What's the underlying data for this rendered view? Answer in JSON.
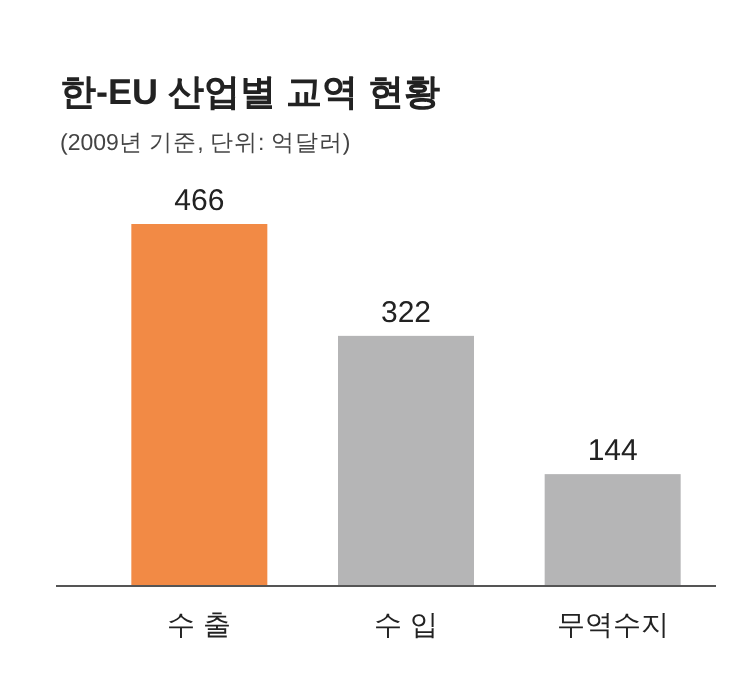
{
  "chart_data": {
    "type": "bar",
    "title": "한-EU 산업별 교역 현황",
    "subtitle": "(2009년 기준, 단위: 억달러)",
    "categories": [
      "수 출",
      "수 입",
      "무역수지"
    ],
    "values": [
      466,
      322,
      144
    ],
    "colors": [
      "#f28a45",
      "#b5b5b6",
      "#b5b5b6"
    ],
    "data_labels": true
  }
}
